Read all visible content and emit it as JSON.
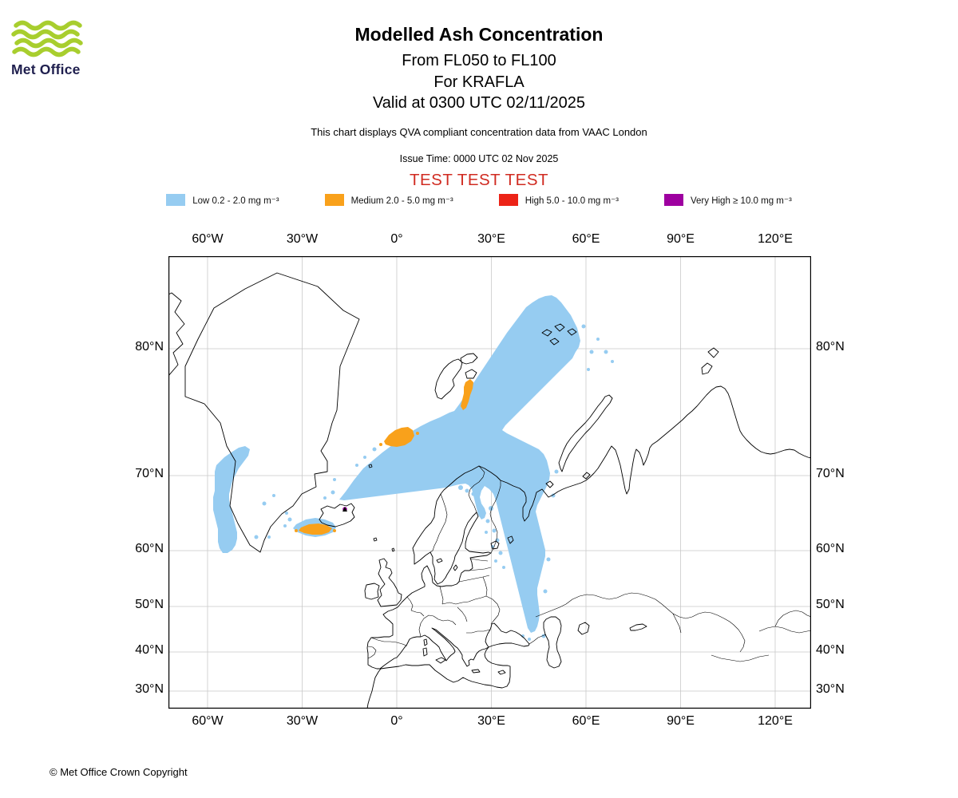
{
  "logo": {
    "brand": "Met Office"
  },
  "header": {
    "title": "Modelled Ash Concentration",
    "subtitle_flight_levels": "From FL050 to FL100",
    "subtitle_volcano": "For KRAFLA",
    "subtitle_valid": "Valid at 0300 UTC 02/11/2025",
    "compliance_note": "This chart displays QVA compliant concentration data from VAAC London",
    "issue_time": "Issue Time: 0000 UTC 02 Nov 2025",
    "test_banner": "TEST TEST TEST",
    "test_banner_color": "#d02b21"
  },
  "legend": {
    "items": [
      {
        "name": "Low",
        "label": "Low 0.2 - 2.0 mg m⁻³",
        "color": "#96ccf1"
      },
      {
        "name": "Medium",
        "label": "Medium 2.0 - 5.0 mg m⁻³",
        "color": "#f9a11b"
      },
      {
        "name": "High",
        "label": "High 5.0 - 10.0 mg m⁻³",
        "color": "#ec2317"
      },
      {
        "name": "Very High",
        "label": "Very High  ≥  10.0 mg m⁻³",
        "color": "#9e00a0"
      }
    ]
  },
  "map": {
    "x_ticks": [
      "60°W",
      "30°W",
      "0°",
      "30°E",
      "60°E",
      "90°E",
      "120°E"
    ],
    "y_ticks": [
      "80°N",
      "70°N",
      "60°N",
      "50°N",
      "40°N",
      "30°N"
    ]
  },
  "footer": {
    "copyright": "© Met Office Crown Copyright"
  },
  "chart_data": {
    "type": "heatmap",
    "title": "Modelled Ash Concentration",
    "layer": "FL050 to FL100",
    "volcano": "KRAFLA",
    "valid_time": "0300 UTC 02/11/2025",
    "issue_time": "0000 UTC 02 Nov 2025",
    "source": "VAAC London",
    "projection": "mercator",
    "x_axis": {
      "label": "longitude",
      "ticks": [
        "60°W",
        "30°W",
        "0°",
        "30°E",
        "60°E",
        "90°E",
        "120°E"
      ]
    },
    "y_axis": {
      "label": "latitude",
      "ticks": [
        "80°N",
        "70°N",
        "60°N",
        "50°N",
        "40°N",
        "30°N"
      ]
    },
    "legend_position": "top",
    "grid": true,
    "concentration_bands": [
      {
        "name": "Low",
        "range": "0.2 - 2.0 mg m⁻³",
        "color": "#96ccf1"
      },
      {
        "name": "Medium",
        "range": "2.0 - 5.0 mg m⁻³",
        "color": "#f9a11b"
      },
      {
        "name": "High",
        "range": "5.0 - 10.0 mg m⁻³",
        "color": "#ec2317"
      },
      {
        "name": "Very High",
        "range": "≥ 10.0 mg m⁻³",
        "color": "#9e00a0"
      }
    ],
    "features": [
      {
        "band": "Low",
        "extent": "Broad plume from Iceland north-east across the Norwegian and Barents Seas past Svalbard to ~84N, with a tongue extending south over Finland, the Baltic and eastern Europe to ~47N, plus a separate strip along south-east Greenland (~60-73N)"
      },
      {
        "band": "Medium",
        "extent": "Patch over the Norwegian Sea near 73N 0-5E; sliver east of Svalbard near 76-78N 22E; patch on the south-west coast of Iceland near 64N 18-24W"
      },
      {
        "band": "High",
        "extent": "none visible"
      },
      {
        "band": "Very High",
        "extent": "point source at the KRAFLA vent (~65.7N 16.8W)"
      }
    ]
  }
}
